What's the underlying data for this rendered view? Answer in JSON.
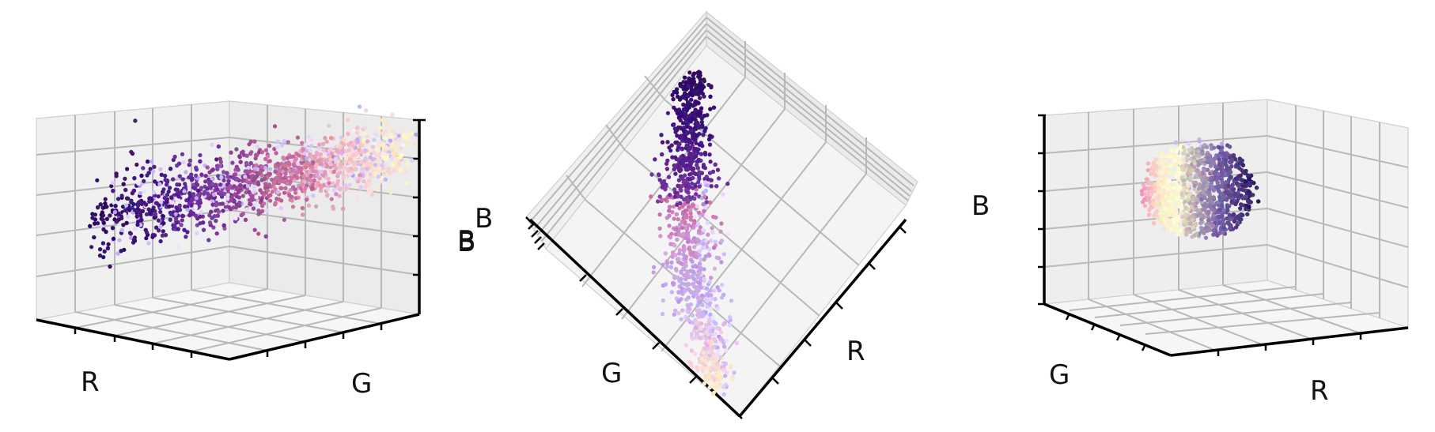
{
  "chart_data": [
    {
      "type": "scatter",
      "projection": "3d",
      "view": "left",
      "axis_labels": {
        "x": "R",
        "y": "G",
        "z": "B"
      },
      "tick_labels_visible": false,
      "grid": true,
      "point_colors": [
        "#3a0f70",
        "#4b1c8c",
        "#6a2aa8",
        "#8c4b9a",
        "#c05a8a",
        "#e08aa8",
        "#f4c4d2",
        "#fff1b8",
        "#d9c8ff"
      ],
      "description_gradient": "points colored by their own RGB value"
    },
    {
      "type": "scatter",
      "projection": "3d",
      "view": "top-down",
      "axis_labels": {
        "x": "R",
        "y": "G",
        "z": "B"
      },
      "tick_labels_visible": false,
      "grid": true
    },
    {
      "type": "scatter",
      "projection": "3d",
      "view": "right",
      "axis_labels": {
        "x": "R",
        "y": "G",
        "z": "B"
      },
      "tick_labels_visible": false,
      "grid": true
    }
  ],
  "labels": {
    "p1_x": "R",
    "p1_y": "G",
    "p1_z": "B",
    "p2_b1": "B",
    "p2_b2": "B",
    "p2_g": "G",
    "p2_r": "R",
    "p3_b": "B",
    "p3_g": "G",
    "p3_r": "R"
  }
}
